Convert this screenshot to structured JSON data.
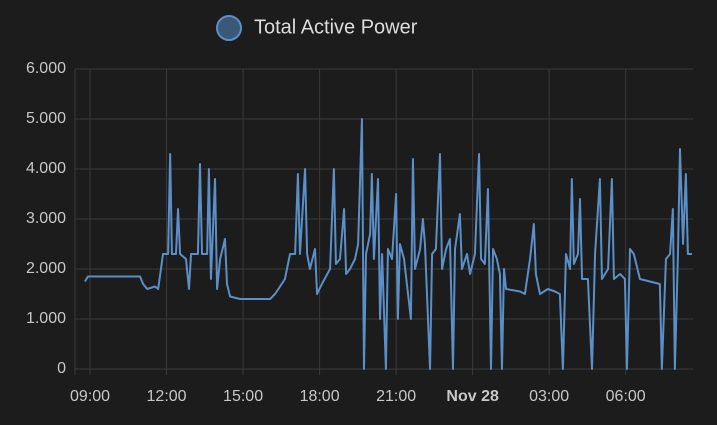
{
  "chart_data": {
    "type": "line",
    "x": [
      8.8,
      8.92,
      10.96,
      11.08,
      11.24,
      11.55,
      11.67,
      11.78,
      11.86,
      12.06,
      12.14,
      12.21,
      12.37,
      12.45,
      12.53,
      12.76,
      12.88,
      12.96,
      13.23,
      13.31,
      13.39,
      13.59,
      13.66,
      13.74,
      13.9,
      13.98,
      14.1,
      14.29,
      14.37,
      14.49,
      14.88,
      15.66,
      16.06,
      16.25,
      16.45,
      16.64,
      16.84,
      17.04,
      17.15,
      17.23,
      17.43,
      17.51,
      17.62,
      17.82,
      17.9,
      18.09,
      18.41,
      18.56,
      18.64,
      18.8,
      18.96,
      19.04,
      19.19,
      19.39,
      19.51,
      19.66,
      19.74,
      19.82,
      19.98,
      20.05,
      20.13,
      20.29,
      20.37,
      20.45,
      20.6,
      20.68,
      20.84,
      21.0,
      21.07,
      21.15,
      21.31,
      21.58,
      21.66,
      21.74,
      21.94,
      22.05,
      22.13,
      22.33,
      22.41,
      22.56,
      22.72,
      22.8,
      22.96,
      23.11,
      23.23,
      23.31,
      23.5,
      23.58,
      23.78,
      23.9,
      24.09,
      24.25,
      24.33,
      24.48,
      24.6,
      24.72,
      24.8,
      24.95,
      25.07,
      25.15,
      25.23,
      25.31,
      25.86,
      26.05,
      26.25,
      26.4,
      26.48,
      26.64,
      26.95,
      27.23,
      27.42,
      27.54,
      27.66,
      27.82,
      27.89,
      27.97,
      28.13,
      28.21,
      28.29,
      28.52,
      28.68,
      28.8,
      28.99,
      29.07,
      29.31,
      29.46,
      29.54,
      29.78,
      29.97,
      30.05,
      30.17,
      30.32,
      30.56,
      30.95,
      31.34,
      31.42,
      31.58,
      31.74,
      31.85,
      31.93,
      32.05,
      32.13,
      32.25,
      32.36,
      32.44,
      32.6
    ],
    "series": [
      {
        "name": "Total Active Power",
        "color": "#5b8fc7",
        "values": [
          1750,
          1850,
          1850,
          1700,
          1600,
          1650,
          1600,
          2000,
          2300,
          2300,
          4300,
          2300,
          2300,
          3200,
          2300,
          2200,
          1600,
          2300,
          2300,
          4100,
          2300,
          2300,
          4000,
          1800,
          3800,
          1600,
          2200,
          2600,
          1700,
          1450,
          1400,
          1400,
          1400,
          1500,
          1650,
          1800,
          2300,
          2300,
          3900,
          2300,
          4000,
          2300,
          2000,
          2400,
          1500,
          1700,
          2000,
          4000,
          2100,
          2200,
          3200,
          1900,
          2000,
          2200,
          2500,
          5000,
          0,
          2300,
          2700,
          3900,
          2200,
          3800,
          1000,
          2300,
          0,
          2400,
          2200,
          3500,
          1000,
          2500,
          2200,
          1000,
          4200,
          2000,
          2400,
          3000,
          2500,
          0,
          2300,
          2400,
          4300,
          2000,
          2400,
          2600,
          0,
          2400,
          3100,
          2000,
          2300,
          1900,
          2300,
          4300,
          2200,
          2100,
          3600,
          0,
          2400,
          2200,
          1900,
          0,
          2000,
          1600,
          1550,
          1500,
          2200,
          2900,
          1900,
          1500,
          1600,
          1550,
          1500,
          0,
          2300,
          2000,
          3800,
          2100,
          2300,
          3400,
          1800,
          1800,
          0,
          2300,
          3800,
          1800,
          2000,
          3800,
          1800,
          1900,
          1800,
          0,
          2400,
          2300,
          1800,
          1750,
          1700,
          0,
          2200,
          2300,
          3200,
          0,
          2300,
          4400,
          2500,
          3900,
          2300,
          2300
        ]
      }
    ],
    "xlim": [
      8.41,
      32.64
    ],
    "xticks": [
      {
        "value": 9,
        "label": "09:00"
      },
      {
        "value": 12,
        "label": "12:00"
      },
      {
        "value": 15,
        "label": "15:00"
      },
      {
        "value": 18,
        "label": "18:00"
      },
      {
        "value": 21,
        "label": "21:00"
      },
      {
        "value": 24,
        "label": "Nov 28"
      },
      {
        "value": 27,
        "label": "03:00"
      },
      {
        "value": 30,
        "label": "06:00"
      }
    ],
    "ylim": [
      0,
      6000
    ],
    "yticks": [
      0,
      {
        "value": 1000,
        "label": "1.000"
      },
      {
        "value": 2000,
        "label": "2.000"
      },
      {
        "value": 3000,
        "label": "3.000"
      },
      {
        "value": 4000,
        "label": "4.000"
      },
      {
        "value": 5000,
        "label": "5.000"
      },
      {
        "value": 6000,
        "label": "6.000"
      }
    ],
    "grid": true
  }
}
